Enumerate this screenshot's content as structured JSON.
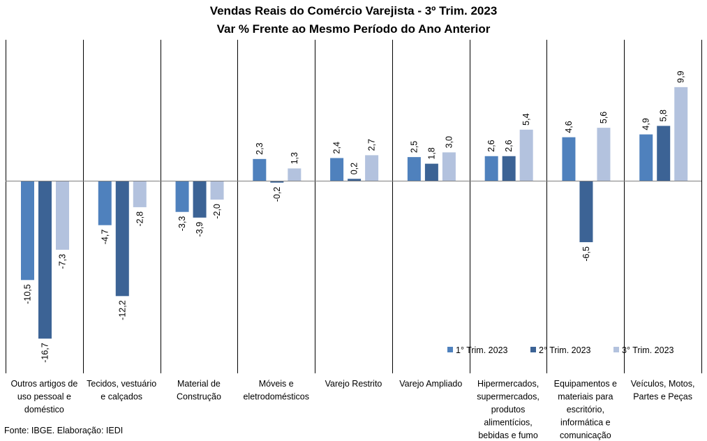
{
  "title": "Vendas Reais do Comércio Varejista - 3º Trim. 2023",
  "subtitle": "Var % Frente ao Mesmo Período do Ano Anterior",
  "source": "Fonte: IBGE. Elaboração: IEDI",
  "chart_data": {
    "type": "bar",
    "title": "Vendas Reais do Comércio Varejista - 3º Trim. 2023",
    "subtitle": "Var % Frente ao Mesmo Período do Ano Anterior",
    "xlabel": "",
    "ylabel": "",
    "ylim": [
      -18,
      13
    ],
    "grid": false,
    "legend_position": "bottom-right",
    "categories": [
      [
        "Outros artigos de",
        "uso pessoal e",
        "doméstico"
      ],
      [
        "Tecidos, vestuário",
        "e calçados"
      ],
      [
        "Material de",
        "Construção"
      ],
      [
        "Móveis e",
        "eletrodomésticos"
      ],
      [
        "Varejo Restrito"
      ],
      [
        "Varejo Ampliado"
      ],
      [
        "Hipermercados,",
        "supermercados,",
        "produtos",
        "alimentícios,",
        "bebidas e fumo"
      ],
      [
        "Equipamentos e",
        "materiais para",
        "escritório,",
        "informática e",
        "comunicação"
      ],
      [
        "Veículos, Motos,",
        "Partes e Peças"
      ]
    ],
    "series": [
      {
        "name": "1° Trim. 2023",
        "color": "#4f81bd",
        "values": [
          -10.5,
          -4.7,
          -3.3,
          2.3,
          2.4,
          2.5,
          2.6,
          4.6,
          4.9
        ],
        "labels": [
          "-10,5",
          "-4,7",
          "-3,3",
          "2,3",
          "2,4",
          "2,5",
          "2,6",
          "4,6",
          "4,9"
        ]
      },
      {
        "name": "2° Trim. 2023",
        "color": "#3c6395",
        "values": [
          -16.7,
          -12.2,
          -3.9,
          -0.2,
          0.2,
          1.8,
          2.6,
          -6.5,
          5.8
        ],
        "labels": [
          "-16,7",
          "-12,2",
          "-3,9",
          "-0,2",
          "0,2",
          "1,8",
          "2,6",
          "-6,5",
          "5,8"
        ]
      },
      {
        "name": "3° Trim. 2023",
        "color": "#b3c2de",
        "values": [
          -7.3,
          -2.8,
          -2.0,
          1.3,
          2.7,
          3.0,
          5.4,
          5.6,
          9.9
        ],
        "labels": [
          "-7,3",
          "-2,8",
          "-2,0",
          "1,3",
          "2,7",
          "3,0",
          "5,4",
          "5,6",
          "9,9"
        ]
      }
    ]
  }
}
